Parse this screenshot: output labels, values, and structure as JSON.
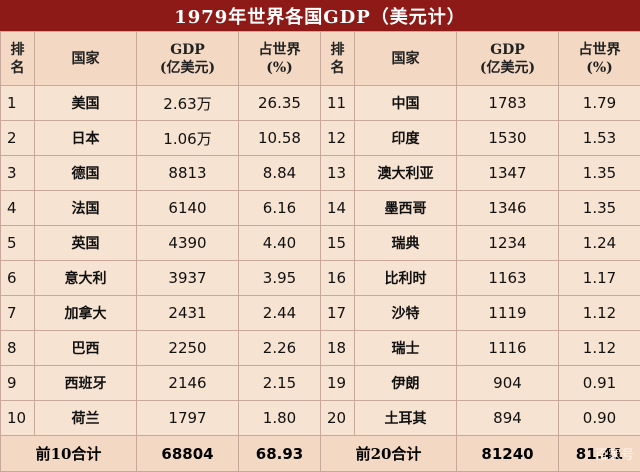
{
  "title": "1979年世界各国GDP（美元计）",
  "headers": {
    "rank": "排名",
    "country": "国家",
    "gdp_line1": "GDP",
    "gdp_line2": "(亿美元)",
    "share_line1": "占世界",
    "share_line2": "(%)"
  },
  "left_rows": [
    {
      "rank": "1",
      "country": "美国",
      "gdp": "2.63万",
      "share": "26.35"
    },
    {
      "rank": "2",
      "country": "日本",
      "gdp": "1.06万",
      "share": "10.58"
    },
    {
      "rank": "3",
      "country": "德国",
      "gdp": "8813",
      "share": "8.84"
    },
    {
      "rank": "4",
      "country": "法国",
      "gdp": "6140",
      "share": "6.16"
    },
    {
      "rank": "5",
      "country": "英国",
      "gdp": "4390",
      "share": "4.40"
    },
    {
      "rank": "6",
      "country": "意大利",
      "gdp": "3937",
      "share": "3.95"
    },
    {
      "rank": "7",
      "country": "加拿大",
      "gdp": "2431",
      "share": "2.44"
    },
    {
      "rank": "8",
      "country": "巴西",
      "gdp": "2250",
      "share": "2.26"
    },
    {
      "rank": "9",
      "country": "西班牙",
      "gdp": "2146",
      "share": "2.15"
    },
    {
      "rank": "10",
      "country": "荷兰",
      "gdp": "1797",
      "share": "1.80"
    }
  ],
  "right_rows": [
    {
      "rank": "11",
      "country": "中国",
      "gdp": "1783",
      "share": "1.79"
    },
    {
      "rank": "12",
      "country": "印度",
      "gdp": "1530",
      "share": "1.53"
    },
    {
      "rank": "13",
      "country": "澳大利亚",
      "gdp": "1347",
      "share": "1.35"
    },
    {
      "rank": "14",
      "country": "墨西哥",
      "gdp": "1346",
      "share": "1.35"
    },
    {
      "rank": "15",
      "country": "瑞典",
      "gdp": "1234",
      "share": "1.24"
    },
    {
      "rank": "16",
      "country": "比利时",
      "gdp": "1163",
      "share": "1.17"
    },
    {
      "rank": "17",
      "country": "沙特",
      "gdp": "1119",
      "share": "1.12"
    },
    {
      "rank": "18",
      "country": "瑞士",
      "gdp": "1116",
      "share": "1.12"
    },
    {
      "rank": "19",
      "country": "伊朗",
      "gdp": "904",
      "share": "0.91"
    },
    {
      "rank": "20",
      "country": "土耳其",
      "gdp": "894",
      "share": "0.90"
    }
  ],
  "totals": {
    "left_label": "前10合计",
    "left_gdp": "68804",
    "left_share": "68.93",
    "right_label": "前20合计",
    "right_gdp": "81240",
    "right_share": "81.41"
  },
  "watermark": "百家号",
  "colors": {
    "title_bg": "#8e1a17",
    "header_bg": "#f3d9c4",
    "body_bg": "#f6e3d2"
  }
}
